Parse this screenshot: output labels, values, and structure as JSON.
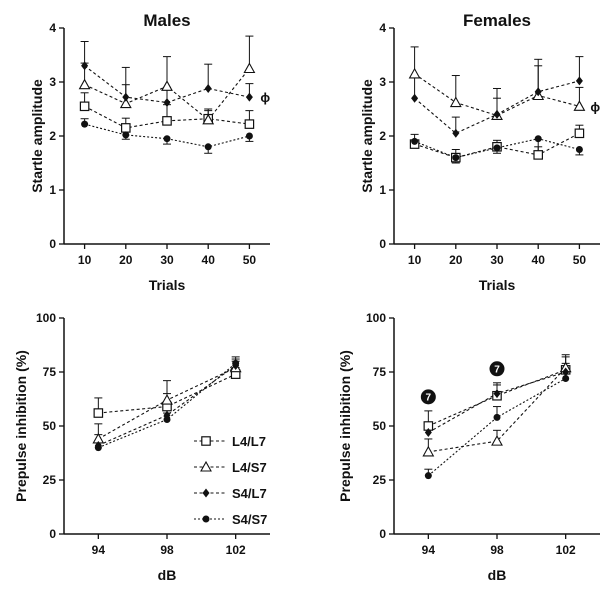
{
  "chart_data": [
    {
      "type": "line",
      "title": "Males",
      "xlabel": "Trials",
      "ylabel": "Startle amplitude",
      "x": [
        10,
        20,
        30,
        40,
        50
      ],
      "xlim": [
        5,
        55
      ],
      "ylim": [
        0,
        4
      ],
      "yticks": [
        0,
        1,
        2,
        3,
        4
      ],
      "annotations": [
        {
          "text": "ϕ",
          "near_series": 2,
          "at_x": 50
        }
      ],
      "series": [
        {
          "name": "L4/L7",
          "marker": "open-square",
          "values": [
            2.55,
            2.15,
            2.28,
            2.32,
            2.22
          ],
          "errors": [
            0.25,
            0.18,
            0.3,
            0.15,
            0.25
          ]
        },
        {
          "name": "L4/S7",
          "marker": "open-triangle",
          "values": [
            2.95,
            2.6,
            2.92,
            2.3,
            3.25
          ],
          "errors": [
            0.4,
            0.35,
            0.55,
            0.2,
            0.6
          ]
        },
        {
          "name": "S4/L7",
          "marker": "filled-diamond",
          "values": [
            3.3,
            2.72,
            2.62,
            2.88,
            2.72
          ],
          "errors": [
            0.45,
            0.55,
            0.28,
            0.45,
            0.25
          ]
        },
        {
          "name": "S4/S7",
          "marker": "filled-circle",
          "values": [
            2.22,
            2.02,
            1.95,
            1.8,
            2.0
          ],
          "errors": [
            0.1,
            0.08,
            0.1,
            0.12,
            0.1
          ]
        }
      ]
    },
    {
      "type": "line",
      "title": "Females",
      "xlabel": "Trials",
      "ylabel": "Startle amplitude",
      "x": [
        10,
        20,
        30,
        40,
        50
      ],
      "xlim": [
        5,
        55
      ],
      "ylim": [
        0,
        4
      ],
      "yticks": [
        0,
        1,
        2,
        3,
        4
      ],
      "annotations": [
        {
          "text": "ϕ",
          "near_series": 1,
          "at_x": 50
        }
      ],
      "series": [
        {
          "name": "L4/L7",
          "marker": "open-square",
          "values": [
            1.85,
            1.6,
            1.8,
            1.65,
            2.05
          ],
          "errors": [
            0.18,
            0.15,
            0.12,
            0.15,
            0.15
          ]
        },
        {
          "name": "L4/S7",
          "marker": "open-triangle",
          "values": [
            3.15,
            2.62,
            2.38,
            2.75,
            2.55
          ],
          "errors": [
            0.5,
            0.5,
            0.5,
            0.55,
            0.35
          ]
        },
        {
          "name": "S4/L7",
          "marker": "filled-diamond",
          "values": [
            2.7,
            2.05,
            2.4,
            2.82,
            3.02
          ],
          "errors": [
            0.4,
            0.3,
            0.3,
            0.6,
            0.45
          ]
        },
        {
          "name": "S4/S7",
          "marker": "filled-circle",
          "values": [
            1.9,
            1.6,
            1.78,
            1.95,
            1.75
          ],
          "errors": [
            0.1,
            0.1,
            0.1,
            0.25,
            0.1
          ]
        }
      ]
    },
    {
      "type": "line",
      "xlabel": "dB",
      "ylabel": "Prepulse inhibition (%)",
      "categories": [
        "94",
        "98",
        "102"
      ],
      "ylim": [
        0,
        100
      ],
      "yticks": [
        0,
        25,
        50,
        75,
        100
      ],
      "legend": "bottom-right",
      "series": [
        {
          "name": "L4/L7",
          "marker": "open-square",
          "values": [
            56,
            59,
            74
          ],
          "errors": [
            7,
            6,
            3
          ]
        },
        {
          "name": "L4/S7",
          "marker": "open-triangle",
          "values": [
            44,
            62,
            77
          ],
          "errors": [
            7,
            9,
            3
          ]
        },
        {
          "name": "S4/L7",
          "marker": "filled-diamond",
          "values": [
            41,
            55,
            78
          ],
          "errors": [
            5,
            4,
            3
          ]
        },
        {
          "name": "S4/S7",
          "marker": "filled-circle",
          "values": [
            40,
            53,
            79
          ],
          "errors": [
            3,
            3,
            3
          ]
        }
      ]
    },
    {
      "type": "line",
      "xlabel": "dB",
      "ylabel": "Prepulse inhibition (%)",
      "categories": [
        "94",
        "98",
        "102"
      ],
      "ylim": [
        0,
        100
      ],
      "yticks": [
        0,
        25,
        50,
        75,
        100
      ],
      "annotations": [
        {
          "text": "7",
          "style": "black-circle",
          "at_category": "94"
        },
        {
          "text": "7",
          "style": "black-circle",
          "at_category": "98"
        }
      ],
      "series": [
        {
          "name": "L4/L7",
          "marker": "open-square",
          "values": [
            50,
            64,
            76
          ],
          "errors": [
            7,
            5,
            7
          ]
        },
        {
          "name": "L4/S7",
          "marker": "open-triangle",
          "values": [
            38,
            43,
            77
          ],
          "errors": [
            6,
            5,
            5
          ]
        },
        {
          "name": "S4/L7",
          "marker": "filled-diamond",
          "values": [
            47,
            65,
            75
          ],
          "errors": [
            4,
            5,
            4
          ]
        },
        {
          "name": "S4/S7",
          "marker": "filled-circle",
          "values": [
            27,
            54,
            72
          ],
          "errors": [
            3,
            5,
            3
          ]
        }
      ]
    }
  ]
}
